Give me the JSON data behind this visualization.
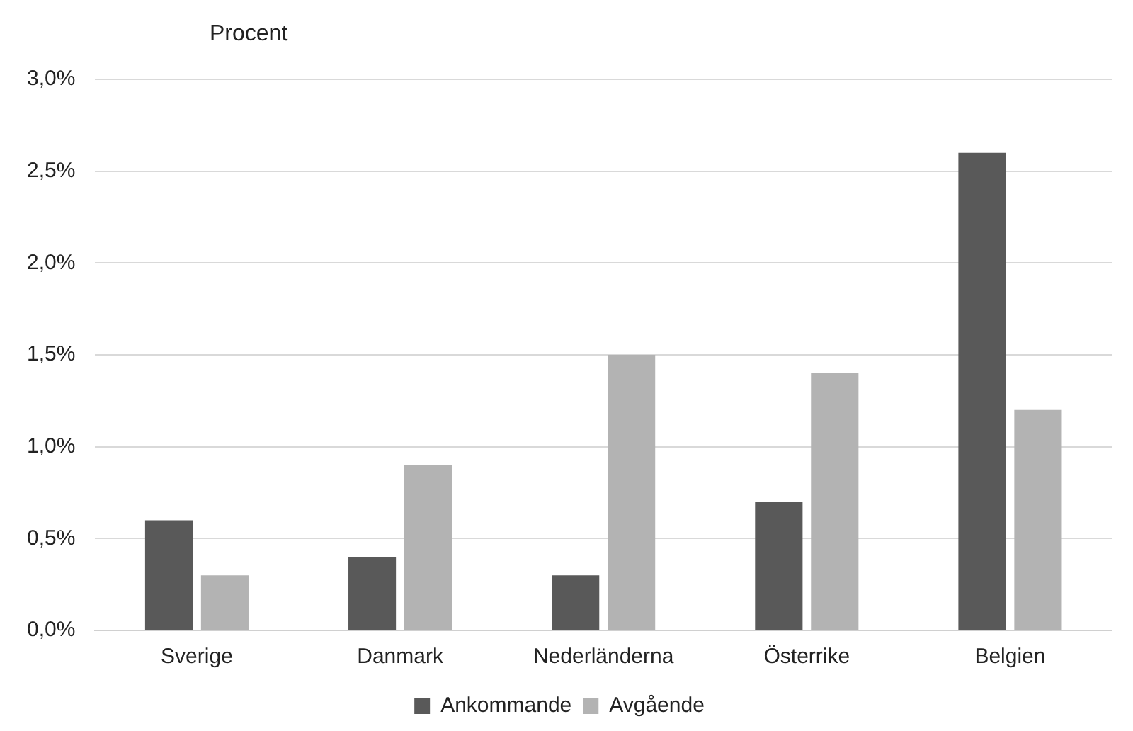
{
  "chart_data": {
    "type": "bar",
    "ylabel": "Procent",
    "categories": [
      "Sverige",
      "Danmark",
      "Nederländerna",
      "Österrike",
      "Belgien"
    ],
    "series": [
      {
        "name": "Ankommande",
        "color": "#595959",
        "values": [
          0.6,
          0.4,
          0.3,
          0.7,
          2.6
        ]
      },
      {
        "name": "Avgående",
        "color": "#b3b3b3",
        "values": [
          0.3,
          0.9,
          1.5,
          1.4,
          1.2
        ]
      }
    ],
    "ylim": [
      0,
      3
    ],
    "yticks": [
      {
        "value": 0,
        "label": "0,0%"
      },
      {
        "value": 0.5,
        "label": "0,5%"
      },
      {
        "value": 1,
        "label": "1,0%"
      },
      {
        "value": 1.5,
        "label": "1,5%"
      },
      {
        "value": 2,
        "label": "2,0%"
      },
      {
        "value": 2.5,
        "label": "2,5%"
      },
      {
        "value": 3,
        "label": "3,0%"
      }
    ],
    "grid": "y",
    "legend": "bottom"
  }
}
